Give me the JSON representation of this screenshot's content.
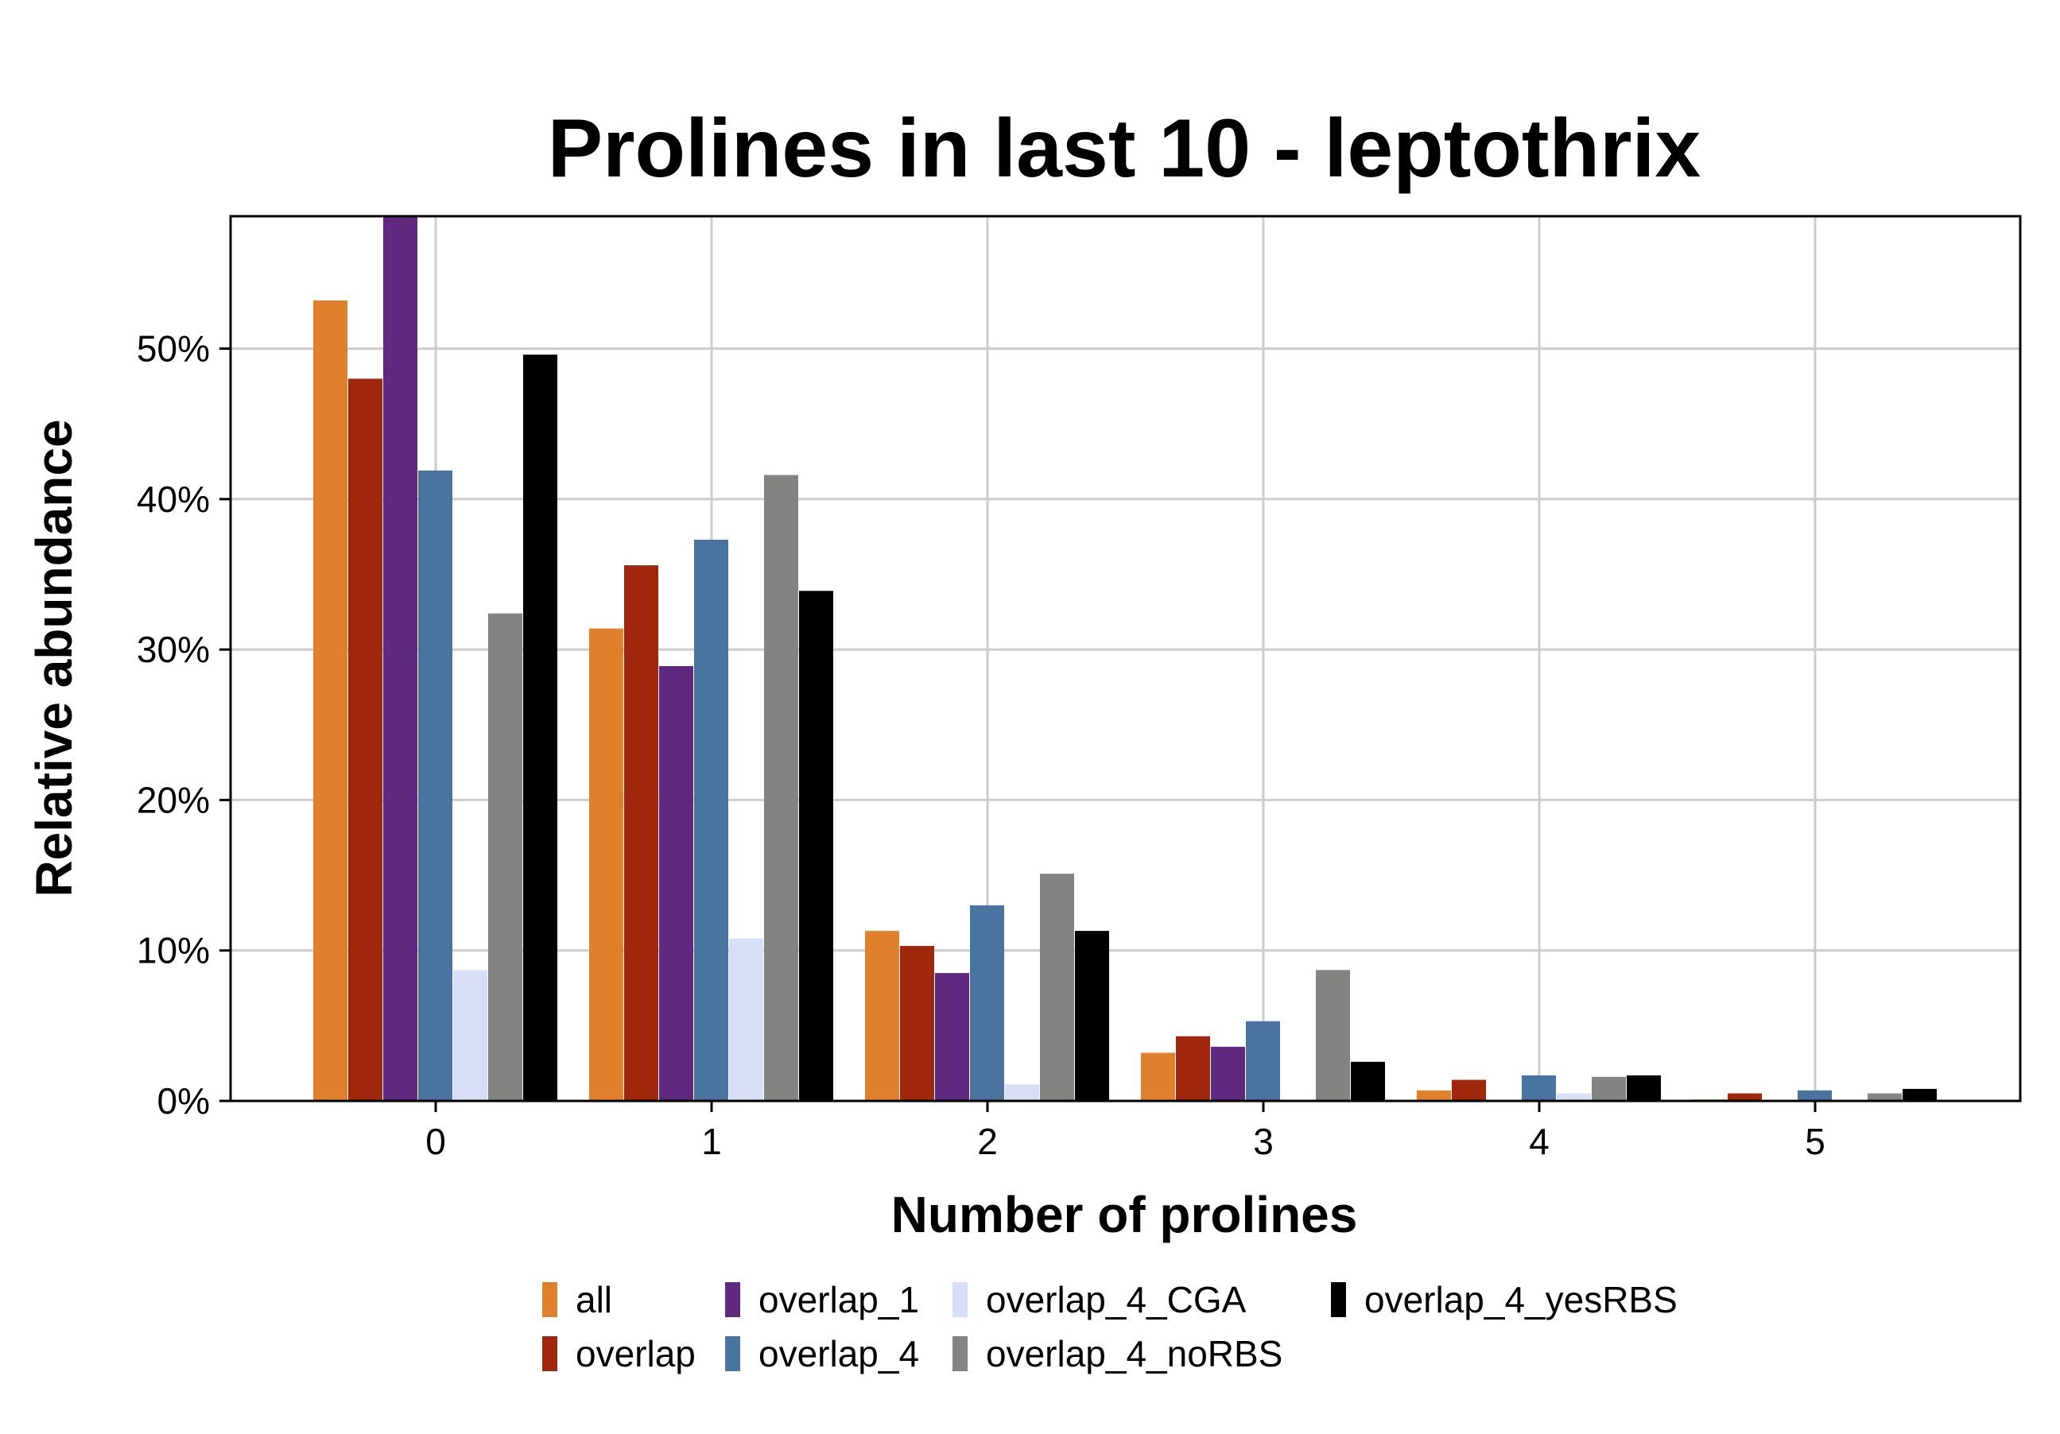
{
  "chart_data": {
    "type": "bar",
    "title": "Prolines in last 10 - leptothrix",
    "xlabel": "Number of prolines",
    "ylabel": "Relative abundance",
    "categories": [
      "0",
      "1",
      "2",
      "3",
      "4",
      "5"
    ],
    "ylim": [
      0,
      58.8
    ],
    "yticks": [
      0,
      10,
      20,
      30,
      40,
      50
    ],
    "ytick_labels": [
      "0%",
      "10%",
      "20%",
      "30%",
      "40%",
      "50%"
    ],
    "grid": true,
    "legend_position": "bottom",
    "series": [
      {
        "name": "all",
        "color": "#E07F2C",
        "values": [
          53.2,
          31.4,
          11.3,
          3.2,
          0.7,
          0.1
        ]
      },
      {
        "name": "overlap",
        "color": "#A0260C",
        "values": [
          48.0,
          35.6,
          10.3,
          4.3,
          1.4,
          0.5
        ]
      },
      {
        "name": "overlap_1",
        "color": "#612880",
        "values": [
          58.8,
          28.9,
          8.5,
          3.6,
          0.0,
          0.0
        ]
      },
      {
        "name": "overlap_4",
        "color": "#4A74A0",
        "values": [
          41.9,
          37.3,
          13.0,
          5.3,
          1.7,
          0.7
        ]
      },
      {
        "name": "overlap_4_CGA",
        "color": "#D6DFF6",
        "values": [
          8.7,
          10.8,
          1.1,
          0.0,
          0.5,
          0.0
        ]
      },
      {
        "name": "overlap_4_noRBS",
        "color": "#838381",
        "values": [
          32.4,
          41.6,
          15.1,
          8.7,
          1.6,
          0.5
        ]
      },
      {
        "name": "overlap_4_yesRBS",
        "color": "#000000",
        "values": [
          49.6,
          33.9,
          11.3,
          2.6,
          1.7,
          0.8
        ]
      }
    ]
  }
}
